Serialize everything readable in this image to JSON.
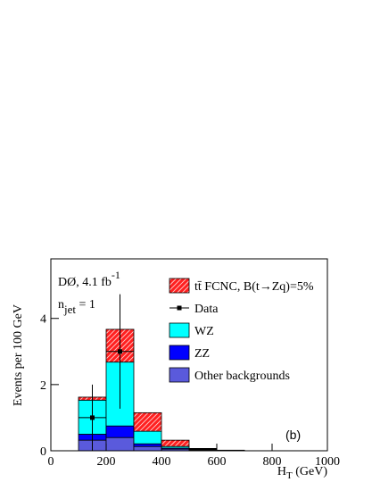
{
  "chart_data": {
    "type": "stacked_histogram",
    "annotations": {
      "experiment": "DØ, 4.1 fb",
      "experiment_sup": "-1",
      "njet_main": "n",
      "njet_sub": "jet",
      "njet_rest": " = 1",
      "panel": "(b)"
    },
    "y_label": "Events per 100 GeV",
    "x_label": {
      "main": "H",
      "sub": "T",
      "rest": " (GeV)"
    },
    "bins": [
      0,
      100,
      200,
      300,
      400,
      500,
      600,
      700,
      800,
      900,
      1000
    ],
    "series": [
      {
        "name": "Other backgrounds",
        "color": "#5a5adc",
        "values": [
          0,
          0.32,
          0.4,
          0.13,
          0.05,
          0.02,
          0.005,
          0,
          0,
          0
        ]
      },
      {
        "name": "ZZ",
        "color": "#0000ff",
        "values": [
          0,
          0.18,
          0.35,
          0.08,
          0.03,
          0.01,
          0.003,
          0,
          0,
          0
        ]
      },
      {
        "name": "WZ",
        "color": "#00ffff",
        "values": [
          0,
          1.03,
          1.93,
          0.38,
          0.05,
          0.02,
          0.005,
          0,
          0,
          0
        ]
      },
      {
        "name": "tt̄ FCNC, B(t→Zq)=5%",
        "color": "#ff2020",
        "hatch": true,
        "values": [
          0,
          0.09,
          0.99,
          0.56,
          0.19,
          0.02,
          0.005,
          0,
          0,
          0
        ]
      }
    ],
    "data": {
      "name": "Data",
      "color": "#000000",
      "x": [
        150,
        250
      ],
      "values": [
        1,
        3
      ],
      "errors": [
        1,
        1.73
      ],
      "xerr": [
        50,
        50
      ]
    },
    "xlim": [
      0,
      1000
    ],
    "xticks": [
      0,
      200,
      400,
      600,
      800,
      1000
    ],
    "ylim": [
      0,
      5.8
    ],
    "yticks": [
      0,
      2,
      4
    ]
  }
}
